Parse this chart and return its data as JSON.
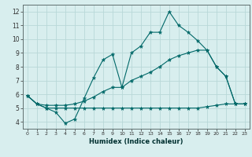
{
  "xlabel": "Humidex (Indice chaleur)",
  "background_color": "#d8eeee",
  "grid_color": "#b8d8d8",
  "line_color": "#006868",
  "xlim": [
    -0.5,
    23.5
  ],
  "ylim": [
    3.5,
    12.5
  ],
  "xticks": [
    0,
    1,
    2,
    3,
    4,
    5,
    6,
    7,
    8,
    9,
    10,
    11,
    12,
    13,
    14,
    15,
    16,
    17,
    18,
    19,
    20,
    21,
    22,
    23
  ],
  "yticks": [
    4,
    5,
    6,
    7,
    8,
    9,
    10,
    11,
    12
  ],
  "line1_x": [
    0,
    1,
    2,
    3,
    4,
    5,
    6,
    7,
    8,
    9,
    10,
    11,
    12,
    13,
    14,
    15,
    16,
    17,
    18,
    19,
    20,
    21,
    22,
    23
  ],
  "line1_y": [
    5.9,
    5.3,
    5.0,
    4.7,
    3.9,
    4.2,
    5.7,
    7.2,
    8.5,
    8.9,
    6.5,
    9.0,
    9.5,
    10.5,
    10.5,
    12.0,
    11.0,
    10.5,
    9.9,
    9.2,
    8.0,
    7.3,
    5.3,
    5.3
  ],
  "line2_x": [
    0,
    1,
    2,
    3,
    4,
    5,
    6,
    7,
    8,
    9,
    10,
    11,
    12,
    13,
    14,
    15,
    16,
    17,
    18,
    19,
    20,
    21,
    22,
    23
  ],
  "line2_y": [
    5.9,
    5.3,
    5.2,
    5.2,
    5.2,
    5.3,
    5.5,
    5.8,
    6.2,
    6.5,
    6.5,
    7.0,
    7.3,
    7.6,
    8.0,
    8.5,
    8.8,
    9.0,
    9.2,
    9.2,
    8.0,
    7.3,
    5.3,
    5.3
  ],
  "line3_x": [
    0,
    1,
    2,
    3,
    4,
    5,
    6,
    7,
    8,
    9,
    10,
    11,
    12,
    13,
    14,
    15,
    16,
    17,
    18,
    19,
    20,
    21,
    22,
    23
  ],
  "line3_y": [
    5.9,
    5.3,
    5.0,
    5.0,
    5.0,
    5.0,
    5.0,
    5.0,
    5.0,
    5.0,
    5.0,
    5.0,
    5.0,
    5.0,
    5.0,
    5.0,
    5.0,
    5.0,
    5.0,
    5.1,
    5.2,
    5.3,
    5.3,
    5.3
  ]
}
